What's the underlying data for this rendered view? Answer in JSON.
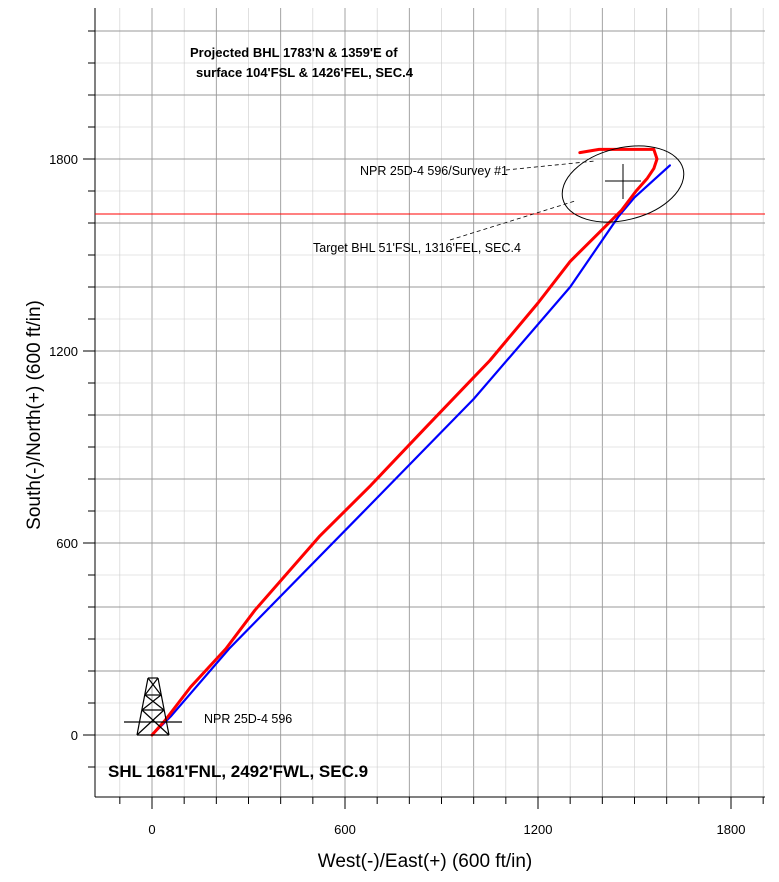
{
  "chart_data": {
    "type": "line",
    "title": [
      "Projected BHL 1783'N & 1359'E of",
      "surface 104'FSL & 1426'FEL, SEC.4"
    ],
    "xlabel": "West(-)/East(+) (600 ft/in)",
    "ylabel": "South(-)/North(+) (600 ft/in)",
    "xlim": [
      -200,
      1900
    ],
    "ylim": [
      -200,
      2300
    ],
    "x_ticks": [
      0,
      600,
      1200,
      1800
    ],
    "y_ticks": [
      0,
      600,
      1200,
      1800
    ],
    "grid": true,
    "series": [
      {
        "name": "NPR 25D-4 596",
        "color": "#0000ff",
        "x": [
          0,
          60,
          240,
          650,
          1000,
          1300,
          1450,
          1500,
          1610
        ],
        "y": [
          0,
          60,
          270,
          690,
          1050,
          1400,
          1620,
          1680,
          1780
        ]
      },
      {
        "name": "NPR 25D-4 596/Survey #1",
        "color": "#ff0000",
        "x": [
          0,
          40,
          120,
          230,
          320,
          520,
          680,
          850,
          1050,
          1200,
          1300,
          1400,
          1460,
          1505,
          1540,
          1560,
          1570,
          1560,
          1520,
          1450,
          1390,
          1330
        ],
        "y": [
          0,
          45,
          150,
          270,
          390,
          620,
          780,
          960,
          1170,
          1350,
          1480,
          1580,
          1640,
          1700,
          1740,
          1770,
          1800,
          1830,
          1830,
          1830,
          1830,
          1820
        ]
      }
    ],
    "target": {
      "circle_center": [
        1450,
        1775
      ],
      "circle_radius_ft": 100,
      "crosshair": [
        1450,
        1700
      ],
      "label": "Target BHL 51'FSL, 1316'FEL, SEC.4"
    },
    "reference_line_y": 1628,
    "annotations": {
      "survey_label": "NPR 25D-4 596/Survey #1",
      "target_label": "Target BHL 51'FSL, 1316'FEL, SEC.4",
      "well_label": "NPR 25D-4 596",
      "shl_label": "SHL 1681'FNL, 2492'FWL, SEC.9"
    },
    "colors": {
      "planned": "#0000ff",
      "survey": "#ff0000",
      "reference": "#ff0000",
      "grid_major": "#999999",
      "grid_minor": "#cccccc"
    }
  }
}
